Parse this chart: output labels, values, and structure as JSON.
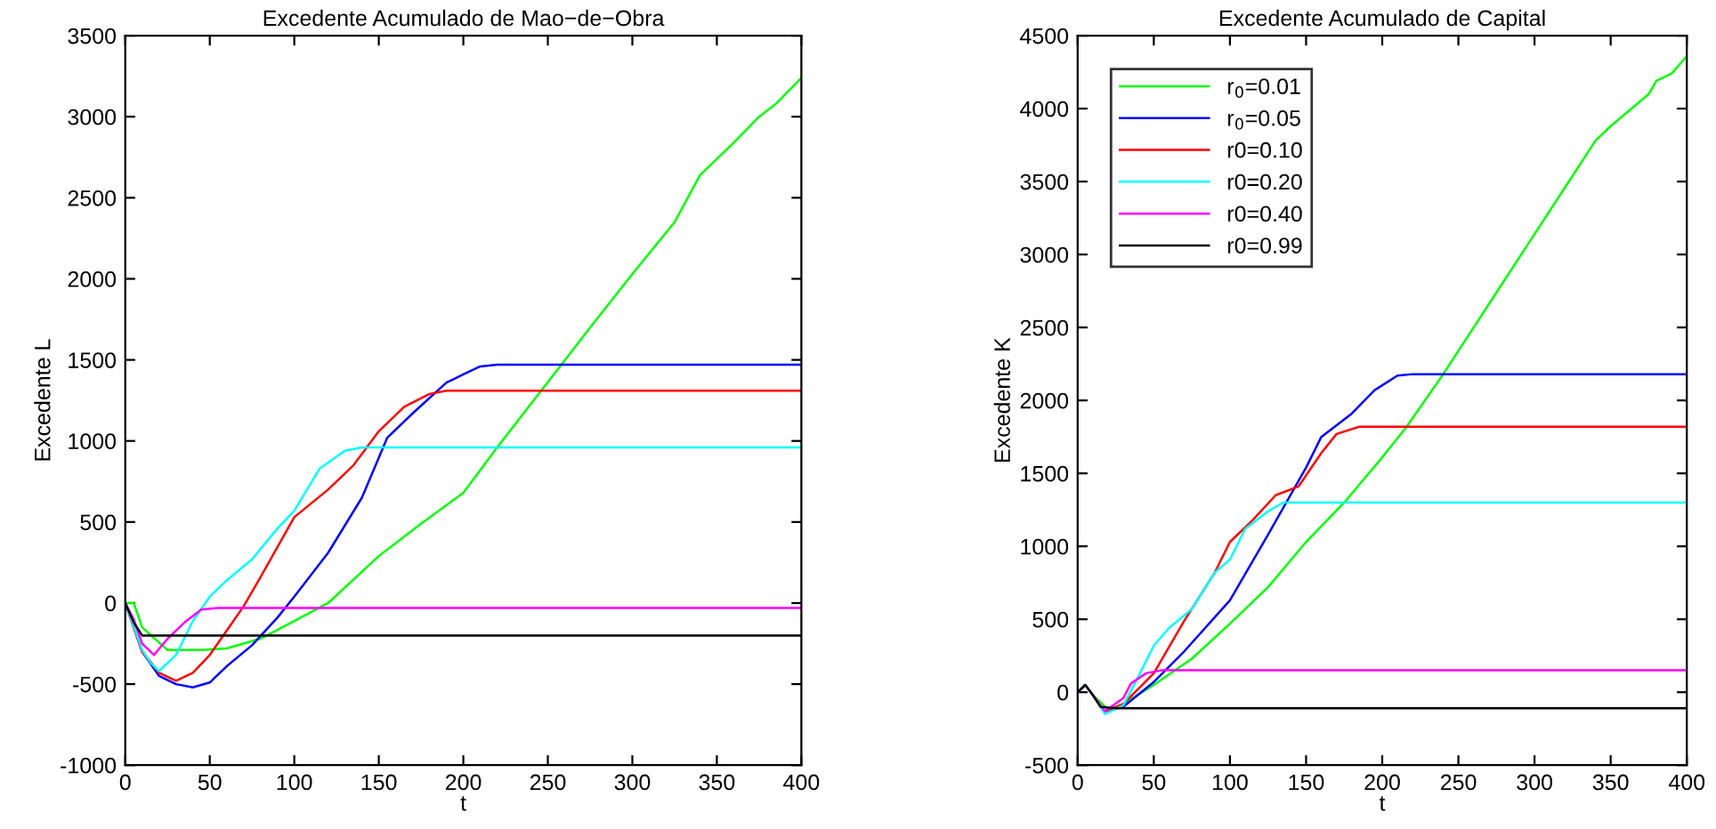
{
  "chart_data": [
    {
      "type": "line",
      "title": "Excedente Acumulado de Mao−de−Obra",
      "xlabel": "t",
      "ylabel": "Excedente L",
      "xlim": [
        0,
        400
      ],
      "xticks": [
        0,
        50,
        100,
        150,
        200,
        250,
        300,
        350,
        400
      ],
      "ylim": [
        -1000,
        3500
      ],
      "yticks": [
        -1000,
        -500,
        0,
        500,
        1000,
        1500,
        2000,
        2500,
        3000,
        3500
      ],
      "grid": false,
      "legend": false,
      "series": [
        {
          "color": "#00ff00",
          "x": [
            0,
            5,
            10,
            25,
            45,
            60,
            80,
            100,
            120,
            150,
            175,
            200,
            220,
            246,
            258,
            275,
            300,
            325,
            340,
            360,
            375,
            385,
            400
          ],
          "values": [
            0,
            0,
            -150,
            -290,
            -290,
            -280,
            -220,
            -110,
            0,
            290,
            490,
            680,
            960,
            1310,
            1470,
            1700,
            2030,
            2350,
            2640,
            2840,
            3000,
            3080,
            3240
          ]
        },
        {
          "color": "#0000ff",
          "x": [
            0,
            10,
            20,
            30,
            40,
            50,
            60,
            75,
            90,
            100,
            120,
            140,
            155,
            170,
            190,
            200,
            210,
            220,
            400
          ],
          "values": [
            0,
            -300,
            -450,
            -500,
            -520,
            -490,
            -390,
            -260,
            -90,
            40,
            310,
            650,
            1020,
            1170,
            1360,
            1410,
            1460,
            1470,
            1470
          ]
        },
        {
          "color": "#ff0000",
          "x": [
            0,
            10,
            20,
            30,
            40,
            50,
            60,
            70,
            80,
            100,
            120,
            135,
            150,
            165,
            180,
            190,
            400
          ],
          "values": [
            0,
            -300,
            -430,
            -480,
            -430,
            -320,
            -170,
            -20,
            160,
            530,
            700,
            850,
            1060,
            1210,
            1290,
            1310,
            1310
          ]
        },
        {
          "color": "#00ffff",
          "x": [
            0,
            10,
            15,
            20,
            30,
            40,
            50,
            60,
            75,
            90,
            100,
            115,
            130,
            140,
            400
          ],
          "values": [
            0,
            -290,
            -370,
            -420,
            -320,
            -110,
            40,
            140,
            270,
            460,
            570,
            830,
            940,
            960,
            960
          ]
        },
        {
          "color": "#ff00ff",
          "x": [
            0,
            5,
            10,
            17,
            25,
            35,
            45,
            55,
            400
          ],
          "values": [
            0,
            -100,
            -250,
            -320,
            -220,
            -120,
            -40,
            -30,
            -30
          ]
        },
        {
          "color": "#000000",
          "x": [
            0,
            5,
            10,
            400
          ],
          "values": [
            0,
            -120,
            -200,
            -200
          ]
        }
      ]
    },
    {
      "type": "line",
      "title": "Excedente Acumulado de Capital",
      "xlabel": "t",
      "ylabel": "Excedente K",
      "xlim": [
        0,
        400
      ],
      "xticks": [
        0,
        50,
        100,
        150,
        200,
        250,
        300,
        350,
        400
      ],
      "ylim": [
        -500,
        4500
      ],
      "yticks": [
        -500,
        0,
        500,
        1000,
        1500,
        2000,
        2500,
        3000,
        3500,
        4000,
        4500
      ],
      "grid": false,
      "legend": "top left",
      "series": [
        {
          "name": "r$_{0}$=0.01",
          "color": "#00ff00",
          "x": [
            0,
            5,
            10,
            20,
            30,
            50,
            75,
            100,
            125,
            150,
            175,
            200,
            216,
            240,
            250,
            275,
            300,
            325,
            340,
            350,
            375,
            380,
            390,
            400
          ],
          "values": [
            0,
            50,
            -20,
            -120,
            -80,
            50,
            230,
            470,
            720,
            1030,
            1300,
            1610,
            1820,
            2180,
            2340,
            2740,
            3140,
            3540,
            3780,
            3880,
            4100,
            4190,
            4240,
            4360
          ]
        },
        {
          "name": "r$_{0}$=0.05",
          "color": "#0000ff",
          "x": [
            18,
            30,
            50,
            70,
            100,
            125,
            150,
            160,
            180,
            195,
            210,
            220,
            400
          ],
          "values": [
            -130,
            -100,
            70,
            280,
            630,
            1080,
            1540,
            1750,
            1910,
            2070,
            2170,
            2180,
            2180
          ]
        },
        {
          "name": "r0=0.10",
          "color": "#ff0000",
          "x": [
            18,
            30,
            50,
            70,
            90,
            100,
            115,
            130,
            145,
            160,
            170,
            185,
            400
          ],
          "values": [
            -130,
            -80,
            130,
            490,
            820,
            1030,
            1180,
            1350,
            1410,
            1640,
            1770,
            1820,
            1820
          ]
        },
        {
          "name": "r0=0.20",
          "color": "#00ffff",
          "x": [
            0,
            5,
            10,
            18,
            30,
            40,
            50,
            60,
            75,
            90,
            100,
            110,
            125,
            135,
            400
          ],
          "values": [
            0,
            50,
            -20,
            -150,
            -90,
            110,
            320,
            440,
            570,
            820,
            910,
            1120,
            1240,
            1300,
            1300
          ]
        },
        {
          "name": "r0=0.40",
          "color": "#ff00ff",
          "x": [
            0,
            5,
            10,
            18,
            30,
            35,
            45,
            55,
            400
          ],
          "values": [
            0,
            50,
            -20,
            -130,
            -40,
            60,
            130,
            150,
            150
          ]
        },
        {
          "name": "r0=0.99",
          "color": "#000000",
          "x": [
            0,
            5,
            10,
            15,
            25,
            400
          ],
          "values": [
            0,
            50,
            -20,
            -100,
            -110,
            -110
          ]
        }
      ]
    }
  ]
}
